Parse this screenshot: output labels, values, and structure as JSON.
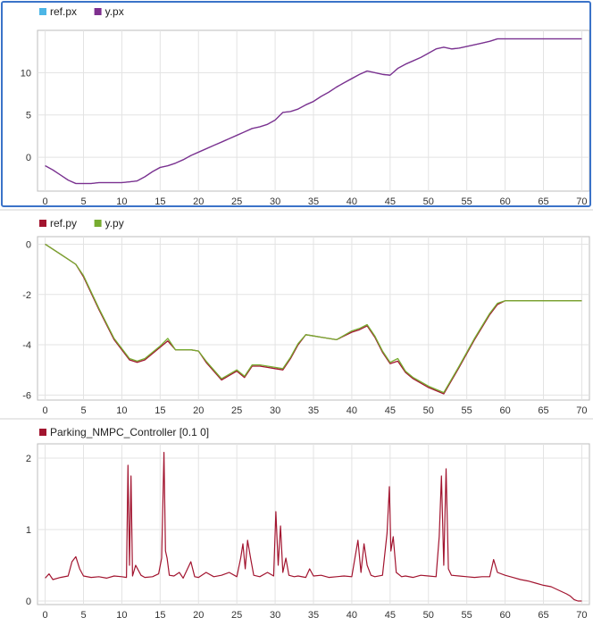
{
  "chart_data": [
    {
      "type": "line",
      "title": "",
      "xlabel": "",
      "ylabel": "",
      "xlim": [
        -1,
        71
      ],
      "ylim": [
        -4,
        15
      ],
      "x_ticks": [
        0,
        5,
        10,
        15,
        20,
        25,
        30,
        35,
        40,
        45,
        50,
        55,
        60,
        65,
        70
      ],
      "y_ticks": [
        0,
        5,
        10
      ],
      "grid": true,
      "legend_position": "top-left",
      "selected": true,
      "series": [
        {
          "name": "ref.px",
          "color": "#4db6e6",
          "visible": false,
          "x": [
            0,
            1,
            2,
            3,
            4,
            5,
            6,
            7,
            8,
            9,
            10,
            11,
            12,
            13,
            14,
            15,
            16,
            17,
            18,
            19,
            20,
            21,
            22,
            23,
            24,
            25,
            26,
            27,
            28,
            29,
            30,
            31,
            32,
            33,
            34,
            35,
            36,
            37,
            38,
            39,
            40,
            41,
            42,
            43,
            44,
            45,
            46,
            47,
            48,
            49,
            50,
            51,
            52,
            53,
            54,
            55,
            56,
            57,
            58,
            59,
            60,
            61,
            62,
            63,
            64,
            65,
            66,
            67,
            68,
            69,
            70
          ],
          "y": [
            -1,
            -1.5,
            -2.1,
            -2.7,
            -3.1,
            -3.1,
            -3.1,
            -3.0,
            -3.0,
            -3.0,
            -3.0,
            -2.9,
            -2.8,
            -2.3,
            -1.7,
            -1.2,
            -1.0,
            -0.7,
            -0.3,
            0.2,
            0.6,
            1.0,
            1.4,
            1.8,
            2.2,
            2.6,
            3.0,
            3.4,
            3.6,
            3.9,
            4.4,
            5.3,
            5.4,
            5.7,
            6.2,
            6.6,
            7.2,
            7.7,
            8.3,
            8.8,
            9.3,
            9.8,
            10.2,
            10.0,
            9.8,
            9.7,
            10.5,
            11.0,
            11.4,
            11.8,
            12.3,
            12.8,
            13.0,
            12.8,
            12.9,
            13.1,
            13.3,
            13.5,
            13.7,
            14.0,
            14.0,
            14.0,
            14.0,
            14.0,
            14.0,
            14.0,
            14.0,
            14.0,
            14.0,
            14.0,
            14.0
          ]
        },
        {
          "name": "y.px",
          "color": "#7e2f8e",
          "x": [
            0,
            1,
            2,
            3,
            4,
            5,
            6,
            7,
            8,
            9,
            10,
            11,
            12,
            13,
            14,
            15,
            16,
            17,
            18,
            19,
            20,
            21,
            22,
            23,
            24,
            25,
            26,
            27,
            28,
            29,
            30,
            31,
            32,
            33,
            34,
            35,
            36,
            37,
            38,
            39,
            40,
            41,
            42,
            43,
            44,
            45,
            46,
            47,
            48,
            49,
            50,
            51,
            52,
            53,
            54,
            55,
            56,
            57,
            58,
            59,
            60,
            61,
            62,
            63,
            64,
            65,
            66,
            67,
            68,
            69,
            70
          ],
          "y": [
            -1,
            -1.5,
            -2.1,
            -2.7,
            -3.1,
            -3.1,
            -3.1,
            -3.0,
            -3.0,
            -3.0,
            -3.0,
            -2.9,
            -2.8,
            -2.3,
            -1.7,
            -1.2,
            -1.0,
            -0.7,
            -0.3,
            0.2,
            0.6,
            1.0,
            1.4,
            1.8,
            2.2,
            2.6,
            3.0,
            3.4,
            3.6,
            3.9,
            4.4,
            5.3,
            5.4,
            5.7,
            6.2,
            6.6,
            7.2,
            7.7,
            8.3,
            8.8,
            9.3,
            9.8,
            10.2,
            10.0,
            9.8,
            9.7,
            10.5,
            11.0,
            11.4,
            11.8,
            12.3,
            12.8,
            13.0,
            12.8,
            12.9,
            13.1,
            13.3,
            13.5,
            13.7,
            14.0,
            14.0,
            14.0,
            14.0,
            14.0,
            14.0,
            14.0,
            14.0,
            14.0,
            14.0,
            14.0,
            14.0
          ]
        }
      ]
    },
    {
      "type": "line",
      "title": "",
      "xlabel": "",
      "ylabel": "",
      "xlim": [
        -1,
        71
      ],
      "ylim": [
        -6.2,
        0.3
      ],
      "x_ticks": [
        0,
        5,
        10,
        15,
        20,
        25,
        30,
        35,
        40,
        45,
        50,
        55,
        60,
        65,
        70
      ],
      "y_ticks": [
        0,
        -2,
        -4,
        -6
      ],
      "grid": true,
      "legend_position": "top-left",
      "series": [
        {
          "name": "ref.py",
          "color": "#a2142f",
          "x": [
            0,
            2,
            4,
            5,
            7,
            9,
            11,
            12,
            13,
            15,
            16,
            17,
            18,
            19,
            20,
            21,
            23,
            25,
            26,
            27,
            28,
            29,
            30,
            31,
            32,
            33,
            34,
            35,
            36,
            38,
            40,
            41,
            42,
            43,
            44,
            45,
            46,
            47,
            48,
            50,
            52,
            54,
            56,
            58,
            59,
            60,
            70
          ],
          "y": [
            0,
            -0.4,
            -0.8,
            -1.3,
            -2.6,
            -3.8,
            -4.6,
            -4.7,
            -4.6,
            -4.1,
            -3.85,
            -4.2,
            -4.2,
            -4.2,
            -4.25,
            -4.7,
            -5.4,
            -5.05,
            -5.3,
            -4.85,
            -4.85,
            -4.9,
            -4.95,
            -5.0,
            -4.55,
            -4.0,
            -3.6,
            -3.65,
            -3.7,
            -3.8,
            -3.5,
            -3.4,
            -3.25,
            -3.7,
            -4.3,
            -4.75,
            -4.65,
            -5.1,
            -5.35,
            -5.7,
            -5.95,
            -4.9,
            -3.8,
            -2.8,
            -2.4,
            -2.25,
            -2.25
          ]
        },
        {
          "name": "y.py",
          "color": "#77ac30",
          "x": [
            0,
            2,
            4,
            5,
            7,
            9,
            11,
            12,
            13,
            15,
            16,
            17,
            18,
            19,
            20,
            21,
            23,
            25,
            26,
            27,
            28,
            29,
            30,
            31,
            32,
            33,
            34,
            35,
            36,
            38,
            40,
            41,
            42,
            43,
            44,
            45,
            46,
            47,
            48,
            50,
            52,
            54,
            56,
            58,
            59,
            60,
            70
          ],
          "y": [
            0,
            -0.4,
            -0.8,
            -1.25,
            -2.55,
            -3.75,
            -4.55,
            -4.65,
            -4.55,
            -4.05,
            -3.75,
            -4.2,
            -4.2,
            -4.2,
            -4.25,
            -4.65,
            -5.35,
            -5.0,
            -5.25,
            -4.8,
            -4.8,
            -4.85,
            -4.9,
            -4.95,
            -4.5,
            -3.95,
            -3.6,
            -3.65,
            -3.7,
            -3.8,
            -3.45,
            -3.35,
            -3.2,
            -3.65,
            -4.25,
            -4.7,
            -4.55,
            -5.05,
            -5.3,
            -5.65,
            -5.9,
            -4.85,
            -3.75,
            -2.75,
            -2.35,
            -2.25,
            -2.25
          ]
        }
      ]
    },
    {
      "type": "line",
      "title": "",
      "xlabel": "",
      "ylabel": "",
      "xlim": [
        -1,
        71
      ],
      "ylim": [
        -0.05,
        2.2
      ],
      "x_ticks": [
        0,
        5,
        10,
        15,
        20,
        25,
        30,
        35,
        40,
        45,
        50,
        55,
        60,
        65,
        70
      ],
      "y_ticks": [
        0,
        1,
        2
      ],
      "grid": true,
      "legend_position": "top-left",
      "series": [
        {
          "name": "Parking_NMPC_Controller [0.1 0]",
          "color": "#a2142f",
          "x": [
            0,
            0.5,
            1,
            2,
            3,
            3.5,
            4,
            4.5,
            5,
            6,
            7,
            8,
            9,
            10,
            10.6,
            10.8,
            11.0,
            11.2,
            11.4,
            11.8,
            12.5,
            13,
            14,
            14.8,
            15.2,
            15.5,
            15.7,
            15.9,
            16.2,
            16.8,
            17.5,
            18,
            19,
            19.5,
            20,
            21,
            22,
            23,
            24,
            25,
            25.5,
            25.8,
            26.1,
            26.4,
            26.8,
            27.2,
            28,
            29,
            29.8,
            30.1,
            30.4,
            30.7,
            31.0,
            31.4,
            31.8,
            32.5,
            33,
            34,
            34.5,
            35,
            36,
            37,
            38,
            39,
            40,
            40.8,
            41.2,
            41.6,
            42,
            42.5,
            43,
            44,
            44.6,
            44.9,
            45.1,
            45.4,
            45.8,
            46.5,
            47,
            48,
            49,
            50,
            51,
            51.4,
            51.7,
            52.0,
            52.3,
            52.6,
            53,
            54,
            55,
            56,
            57,
            58,
            58.5,
            59,
            60,
            61,
            62,
            63,
            64,
            65,
            66,
            67,
            68,
            68.5,
            69,
            69.5,
            70
          ],
          "y": [
            0.32,
            0.38,
            0.3,
            0.33,
            0.35,
            0.55,
            0.62,
            0.45,
            0.35,
            0.33,
            0.34,
            0.32,
            0.35,
            0.34,
            0.33,
            1.9,
            0.5,
            1.75,
            0.35,
            0.5,
            0.36,
            0.33,
            0.34,
            0.38,
            0.6,
            2.08,
            0.7,
            0.6,
            0.36,
            0.35,
            0.4,
            0.32,
            0.55,
            0.34,
            0.33,
            0.4,
            0.34,
            0.36,
            0.4,
            0.34,
            0.6,
            0.8,
            0.45,
            0.85,
            0.6,
            0.36,
            0.34,
            0.4,
            0.35,
            1.25,
            0.5,
            1.05,
            0.4,
            0.6,
            0.36,
            0.34,
            0.35,
            0.33,
            0.45,
            0.35,
            0.36,
            0.33,
            0.34,
            0.35,
            0.34,
            0.85,
            0.4,
            0.8,
            0.5,
            0.36,
            0.34,
            0.36,
            0.95,
            1.6,
            0.7,
            0.9,
            0.4,
            0.34,
            0.35,
            0.33,
            0.36,
            0.35,
            0.34,
            0.9,
            1.75,
            0.5,
            1.85,
            0.45,
            0.36,
            0.35,
            0.34,
            0.33,
            0.34,
            0.34,
            0.58,
            0.4,
            0.36,
            0.33,
            0.3,
            0.28,
            0.25,
            0.22,
            0.2,
            0.15,
            0.1,
            0.07,
            0.02,
            0,
            0
          ]
        }
      ]
    }
  ]
}
